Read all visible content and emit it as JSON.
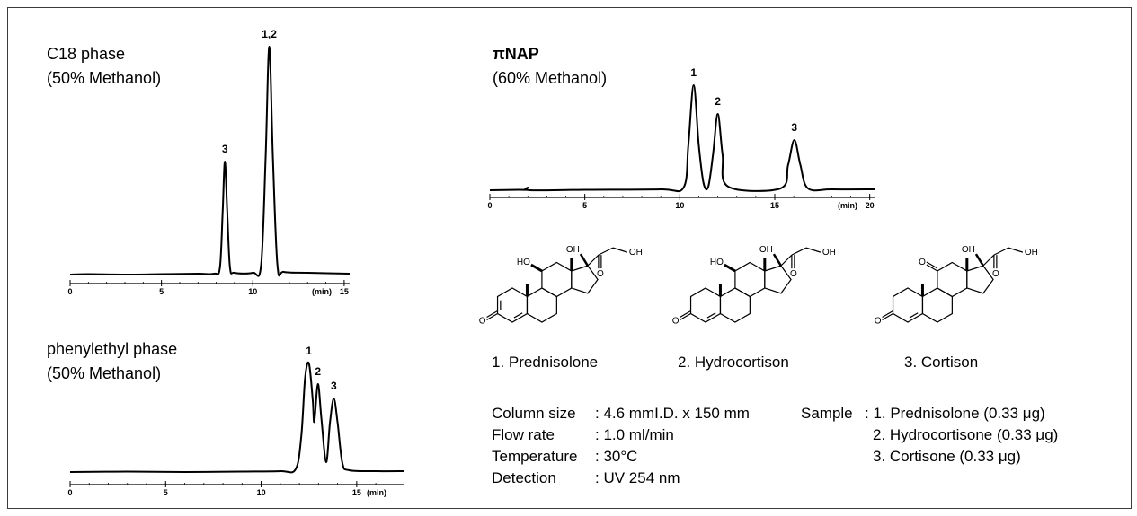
{
  "chart_data": [
    {
      "type": "line",
      "title": "C18 phase",
      "subtitle": "(50% Methanol)",
      "xlabel": "(min)",
      "color": "#000000",
      "x": [
        0,
        1,
        3,
        5,
        7,
        7.9,
        8.2,
        8.35,
        8.47,
        8.6,
        8.75,
        9.0,
        10.0,
        10.45,
        10.7,
        10.9,
        11.1,
        11.35,
        11.7,
        13,
        15.3
      ],
      "values": [
        0,
        0.5,
        0,
        0.5,
        1,
        1,
        8,
        70,
        126,
        70,
        8,
        2,
        2,
        10,
        130,
        254,
        130,
        10,
        3,
        2,
        1
      ],
      "xlim": [
        0,
        15.3
      ],
      "ylim": [
        0,
        270
      ],
      "xticks": [
        0,
        5,
        10,
        15
      ],
      "annotations": [
        {
          "text": "3",
          "x": 8.47
        },
        {
          "text": "1,2",
          "x": 10.9
        }
      ]
    },
    {
      "type": "line",
      "title": "phenylethyl phase",
      "subtitle": "(50% Methanol)",
      "xlabel": "(min)",
      "color": "#000000",
      "x": [
        0,
        3,
        6,
        9,
        11,
        11.8,
        12.1,
        12.3,
        12.5,
        12.7,
        12.78,
        12.97,
        13.15,
        13.4,
        13.6,
        13.8,
        14.0,
        14.25,
        14.6,
        16,
        17.5
      ],
      "values": [
        0,
        0.5,
        0,
        0.5,
        1,
        3,
        40,
        105,
        121,
        80,
        56,
        98,
        60,
        11,
        55,
        82,
        55,
        10,
        2,
        1,
        1
      ],
      "xlim": [
        0,
        17.5
      ],
      "ylim": [
        0,
        130
      ],
      "xticks": [
        0,
        5,
        10,
        15
      ],
      "annotations": [
        {
          "text": "1",
          "x": 12.5
        },
        {
          "text": "2",
          "x": 12.97
        },
        {
          "text": "3",
          "x": 13.8
        }
      ]
    },
    {
      "type": "line",
      "title": "πNAP",
      "subtitle": "(60% Methanol)",
      "title_weight": "bold",
      "xlabel": "(min)",
      "color": "#000000",
      "x": [
        0,
        1.5,
        1.9,
        2.0,
        2.1,
        5,
        9,
        10.2,
        10.45,
        10.73,
        11.0,
        11.25,
        11.5,
        11.75,
        12.0,
        12.25,
        12.55,
        15.3,
        15.7,
        16.03,
        16.35,
        16.75,
        18,
        20.3
      ],
      "values": [
        0,
        0.5,
        0.5,
        3,
        0,
        0.5,
        1,
        3,
        50,
        117,
        50,
        8,
        4,
        40,
        85,
        40,
        4,
        2,
        28,
        56,
        28,
        2,
        1,
        1
      ],
      "xlim": [
        0,
        20.3
      ],
      "ylim": [
        0,
        130
      ],
      "xticks": [
        0,
        5,
        10,
        15,
        20
      ],
      "annotations": [
        {
          "text": "1",
          "x": 10.73
        },
        {
          "text": "2",
          "x": 12.0
        },
        {
          "text": "3",
          "x": 16.03
        }
      ]
    }
  ],
  "structures": [
    {
      "c3": "O",
      "c11": "HO",
      "c17": "OH",
      "side_o": "O",
      "side_oh": "OH",
      "delta1": true
    },
    {
      "c3": "O",
      "c11": "HO",
      "c17": "OH",
      "side_o": "O",
      "side_oh": "OH",
      "delta1": false
    },
    {
      "c3": "O",
      "c11": "O",
      "c17": "OH",
      "side_o": "O",
      "side_oh": "OH",
      "delta1": false
    }
  ],
  "compounds": [
    "1. Prednisolone",
    "2. Hydrocortison",
    "3. Cortison"
  ],
  "conditions": [
    {
      "label": "Column size",
      "value": ": 4.6 mmI.D. x 150 mm"
    },
    {
      "label": "Flow rate",
      "value": ": 1.0 ml/min"
    },
    {
      "label": "Temperature",
      "value": ": 30°C"
    },
    {
      "label": "Detection",
      "value": ": UV 254 nm"
    }
  ],
  "sample": {
    "label": "Sample",
    "items": [
      ": 1. Prednisolone (0.33 μg)",
      "2. Hydrocortisone (0.33 μg)",
      "3. Cortisone (0.33 μg)"
    ]
  }
}
